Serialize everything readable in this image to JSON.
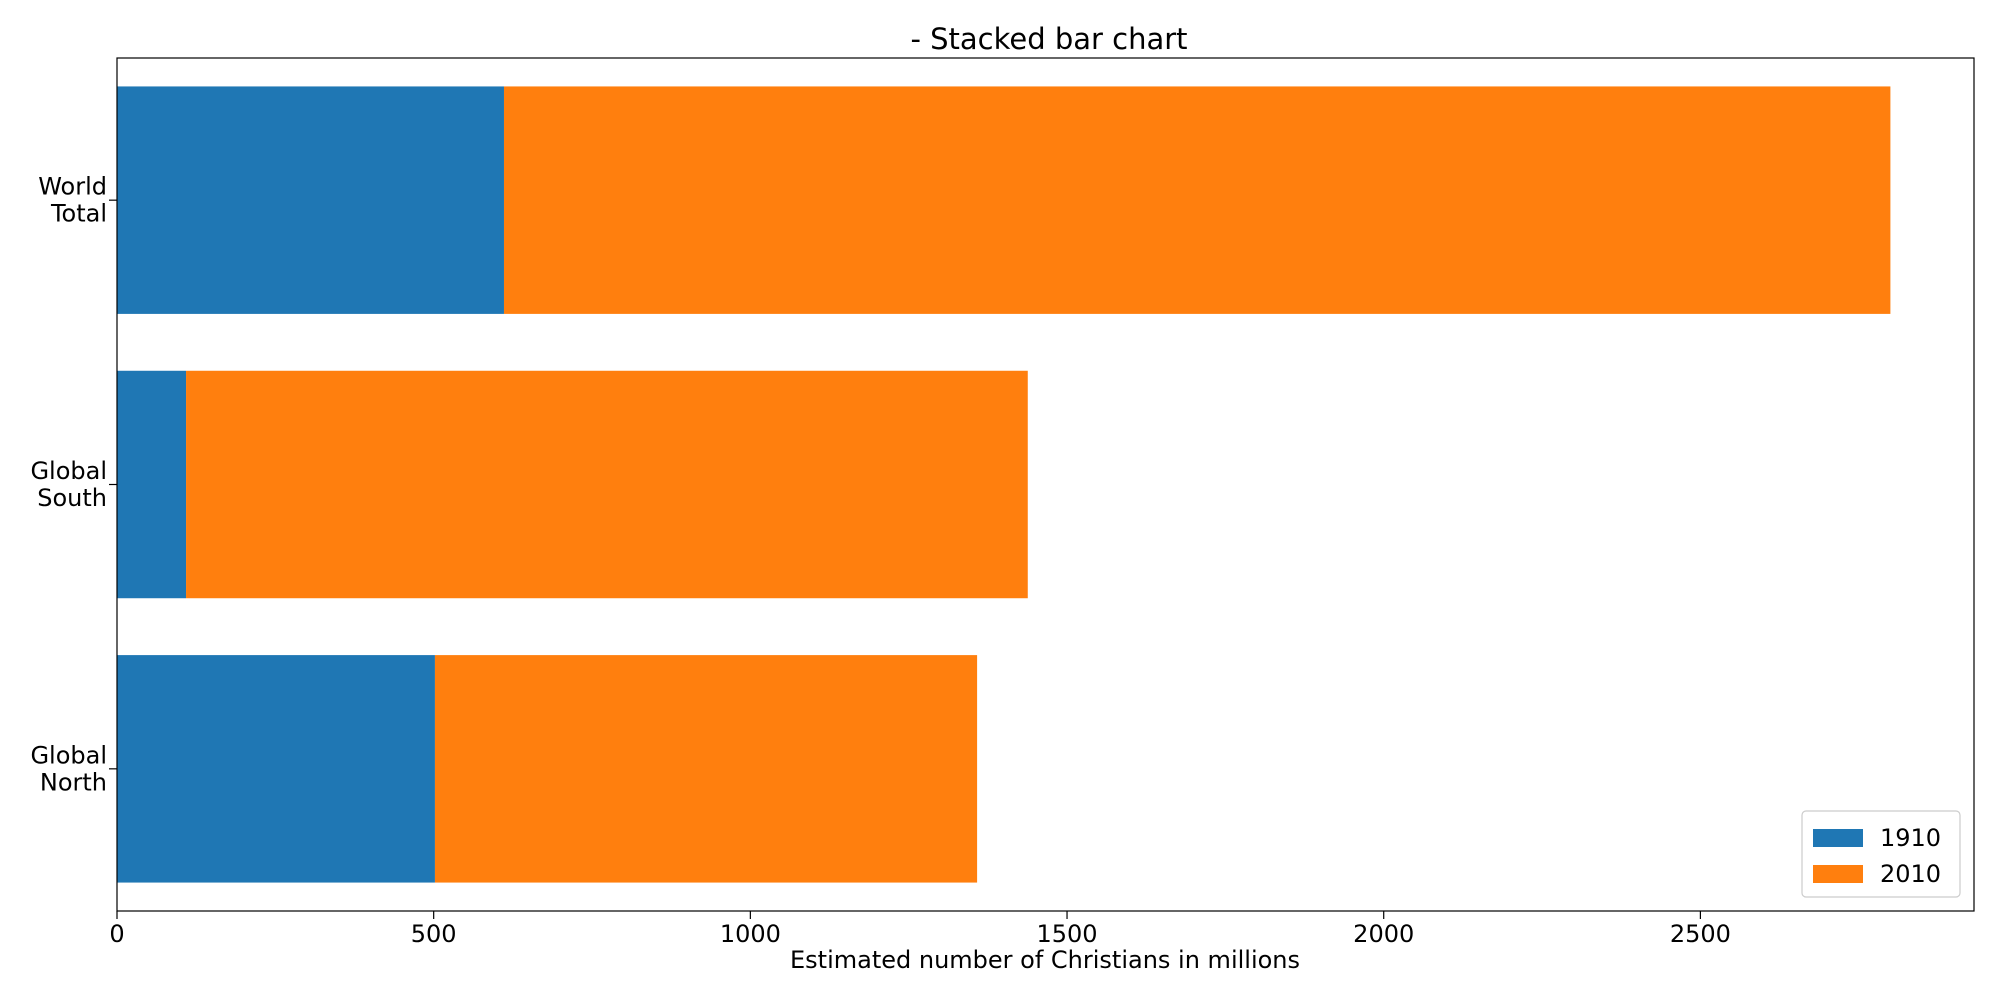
{
  "chart_data": {
    "type": "bar",
    "orientation": "horizontal",
    "stacked": true,
    "title": "- Stacked bar chart",
    "xlabel": "Estimated number of Christians in millions",
    "ylabel": "",
    "categories": [
      [
        "Global",
        "North"
      ],
      [
        "Global",
        "South"
      ],
      [
        "World",
        "Total"
      ]
    ],
    "series": [
      {
        "name": "1910",
        "values": [
          502,
          109,
          611
        ],
        "color": "#1f77b4"
      },
      {
        "name": "2010",
        "values": [
          856,
          1329,
          2189
        ],
        "color": "#ff7f0e"
      }
    ],
    "xlim": [
      0,
      2932
    ],
    "xticks": [
      0,
      500,
      1000,
      1500,
      2000,
      2500
    ],
    "grid": false,
    "legend_position": "bottom-right"
  }
}
